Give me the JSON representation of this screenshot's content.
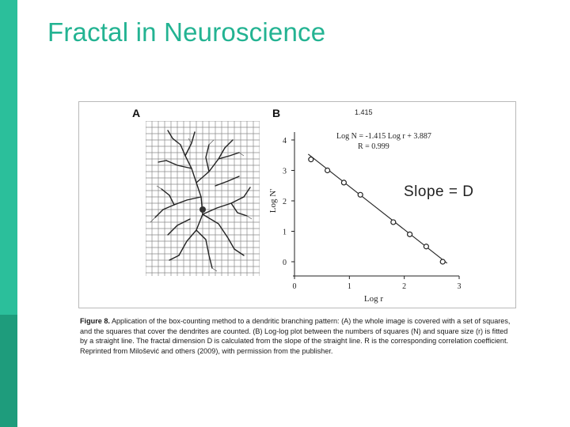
{
  "slide": {
    "title": "Fractal in Neuroscience",
    "annotation": "Slope = D"
  },
  "figure": {
    "panel_a_label": "A",
    "panel_b_label": "B",
    "plot": {
      "header_value": "1.415",
      "equation": "Log N = -1.415 Log r + 3.887",
      "r_value": "R = 0.999",
      "ylabel": "Log N'",
      "xlabel": "Log r",
      "x_ticks": [
        "0",
        "1",
        "2",
        "3"
      ],
      "y_ticks": [
        "0",
        "1",
        "2",
        "3",
        "4"
      ]
    },
    "caption": {
      "label": "Figure 8.",
      "text": "Application of the box-counting method to a dendritic branching pattern: (A) the whole image is covered with a set of squares, and the squares that cover the dendrites are counted. (B) Log-log plot between the numbers of squares (N) and square size (r) is fitted by a straight line. The fractal dimension D is calculated from the slope of the straight line. R is the corresponding correlation coefficient. Reprinted from Milošević and others (2009), with permission from the publisher."
    }
  },
  "chart_data": {
    "type": "scatter",
    "xlim": [
      0,
      3
    ],
    "ylim": [
      0,
      4
    ],
    "points": [
      {
        "x": 0.3,
        "y": 3.36
      },
      {
        "x": 0.6,
        "y": 3.0
      },
      {
        "x": 0.9,
        "y": 2.6
      },
      {
        "x": 1.2,
        "y": 2.2
      },
      {
        "x": 1.8,
        "y": 1.3
      },
      {
        "x": 2.1,
        "y": 0.9
      },
      {
        "x": 2.4,
        "y": 0.5
      },
      {
        "x": 2.7,
        "y": 0.0
      }
    ],
    "fit": {
      "slope": -1.415,
      "intercept": 3.887
    }
  }
}
